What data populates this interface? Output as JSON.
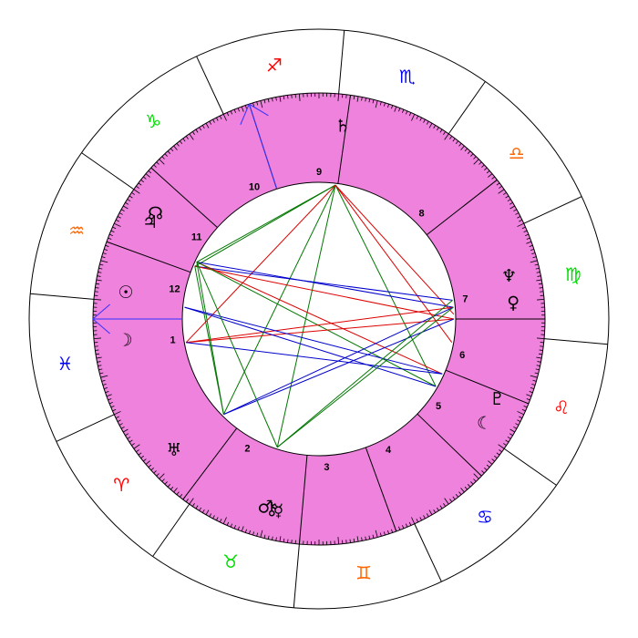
{
  "colors": {
    "background": "#ffffff",
    "house_ring": "#ee82dd",
    "fire": "#ff0000",
    "earth": "#00dd00",
    "air": "#ff6600",
    "water": "#0000ff",
    "aspect_red": "#dd0000",
    "aspect_green": "#007700",
    "aspect_blue": "#0000cc",
    "angle_arrow": "#3333ff",
    "planet_glyph": "#000000"
  },
  "zodiac": [
    {
      "name": "aries",
      "glyph": "♈",
      "element": "fire",
      "start_angle": 205
    },
    {
      "name": "taurus",
      "glyph": "♉",
      "element": "earth",
      "start_angle": 235
    },
    {
      "name": "gemini",
      "glyph": "♊",
      "element": "air",
      "start_angle": 265
    },
    {
      "name": "cancer",
      "glyph": "♋",
      "element": "water",
      "start_angle": 295
    },
    {
      "name": "leo",
      "glyph": "♌",
      "element": "fire",
      "start_angle": 325
    },
    {
      "name": "virgo",
      "glyph": "♍",
      "element": "earth",
      "start_angle": 355
    },
    {
      "name": "libra",
      "glyph": "♎",
      "element": "air",
      "start_angle": 25
    },
    {
      "name": "scorpio",
      "glyph": "♏",
      "element": "water",
      "start_angle": 55
    },
    {
      "name": "sagittarius",
      "glyph": "♐",
      "element": "fire",
      "start_angle": 85
    },
    {
      "name": "capricorn",
      "glyph": "♑",
      "element": "earth",
      "start_angle": 115
    },
    {
      "name": "aquarius",
      "glyph": "♒",
      "element": "air",
      "start_angle": 145
    },
    {
      "name": "pisces",
      "glyph": "♓",
      "element": "water",
      "start_angle": 175
    }
  ],
  "houses": [
    {
      "label": "1",
      "cusp_angle": 180
    },
    {
      "label": "2",
      "cusp_angle": 233
    },
    {
      "label": "3",
      "cusp_angle": 265
    },
    {
      "label": "4",
      "cusp_angle": 290
    },
    {
      "label": "5",
      "cusp_angle": 316
    },
    {
      "label": "6",
      "cusp_angle": 338
    },
    {
      "label": "7",
      "cusp_angle": 0
    },
    {
      "label": "8",
      "cusp_angle": 38
    },
    {
      "label": "9",
      "cusp_angle": 82
    },
    {
      "label": "10",
      "cusp_angle": 108
    },
    {
      "label": "11",
      "cusp_angle": 138
    },
    {
      "label": "12",
      "cusp_angle": 160
    }
  ],
  "planets": [
    {
      "name": "saturn",
      "glyph": "♄",
      "angle": 83
    },
    {
      "name": "jupiter",
      "glyph": "♃",
      "angle": 150
    },
    {
      "name": "moon-node",
      "glyph": "☊",
      "angle": 147
    },
    {
      "name": "sun",
      "glyph": "☉",
      "angle": 172
    },
    {
      "name": "moon",
      "glyph": "☽",
      "angle": 186
    },
    {
      "name": "uranus",
      "glyph": "♅",
      "angle": 222
    },
    {
      "name": "chiron",
      "glyph": "⚷",
      "angle": 256
    },
    {
      "name": "mercury",
      "glyph": "☿",
      "angle": 258
    },
    {
      "name": "mars",
      "glyph": "♂",
      "angle": 254
    },
    {
      "name": "moon-2",
      "glyph": "☾",
      "angle": 328
    },
    {
      "name": "pluto",
      "glyph": "♇",
      "angle": 336
    },
    {
      "name": "neptune",
      "glyph": "♆",
      "angle": 13
    },
    {
      "name": "venus-retro",
      "glyph": "♀",
      "angle": 5
    }
  ],
  "aspect_lines": [
    {
      "a": 83,
      "b": 155,
      "color": "green"
    },
    {
      "a": 83,
      "b": 157,
      "color": "green"
    },
    {
      "a": 83,
      "b": 225,
      "color": "green"
    },
    {
      "a": 83,
      "b": 252,
      "color": "green"
    },
    {
      "a": 83,
      "b": 330,
      "color": "green"
    },
    {
      "a": 83,
      "b": 190,
      "color": "red"
    },
    {
      "a": 83,
      "b": 350,
      "color": "red"
    },
    {
      "a": 83,
      "b": 2,
      "color": "red"
    },
    {
      "a": 157,
      "b": 8,
      "color": "blue"
    },
    {
      "a": 155,
      "b": 5,
      "color": "blue"
    },
    {
      "a": 157,
      "b": 0,
      "color": "red"
    },
    {
      "a": 155,
      "b": 336,
      "color": "red"
    },
    {
      "a": 155,
      "b": 330,
      "color": "green"
    },
    {
      "a": 190,
      "b": 0,
      "color": "red"
    },
    {
      "a": 190,
      "b": 5,
      "color": "red"
    },
    {
      "a": 190,
      "b": 336,
      "color": "blue"
    },
    {
      "a": 175,
      "b": 336,
      "color": "blue"
    },
    {
      "a": 175,
      "b": 330,
      "color": "blue"
    },
    {
      "a": 225,
      "b": 0,
      "color": "blue"
    },
    {
      "a": 225,
      "b": 5,
      "color": "blue"
    },
    {
      "a": 225,
      "b": 155,
      "color": "green"
    },
    {
      "a": 225,
      "b": 157,
      "color": "green"
    },
    {
      "a": 252,
      "b": 8,
      "color": "green"
    },
    {
      "a": 252,
      "b": 5,
      "color": "green"
    },
    {
      "a": 252,
      "b": 155,
      "color": "green"
    }
  ],
  "arrows": [
    {
      "name": "ascendant-arrow",
      "angle": 180
    },
    {
      "name": "midheaven-arrow",
      "angle": 108
    }
  ]
}
